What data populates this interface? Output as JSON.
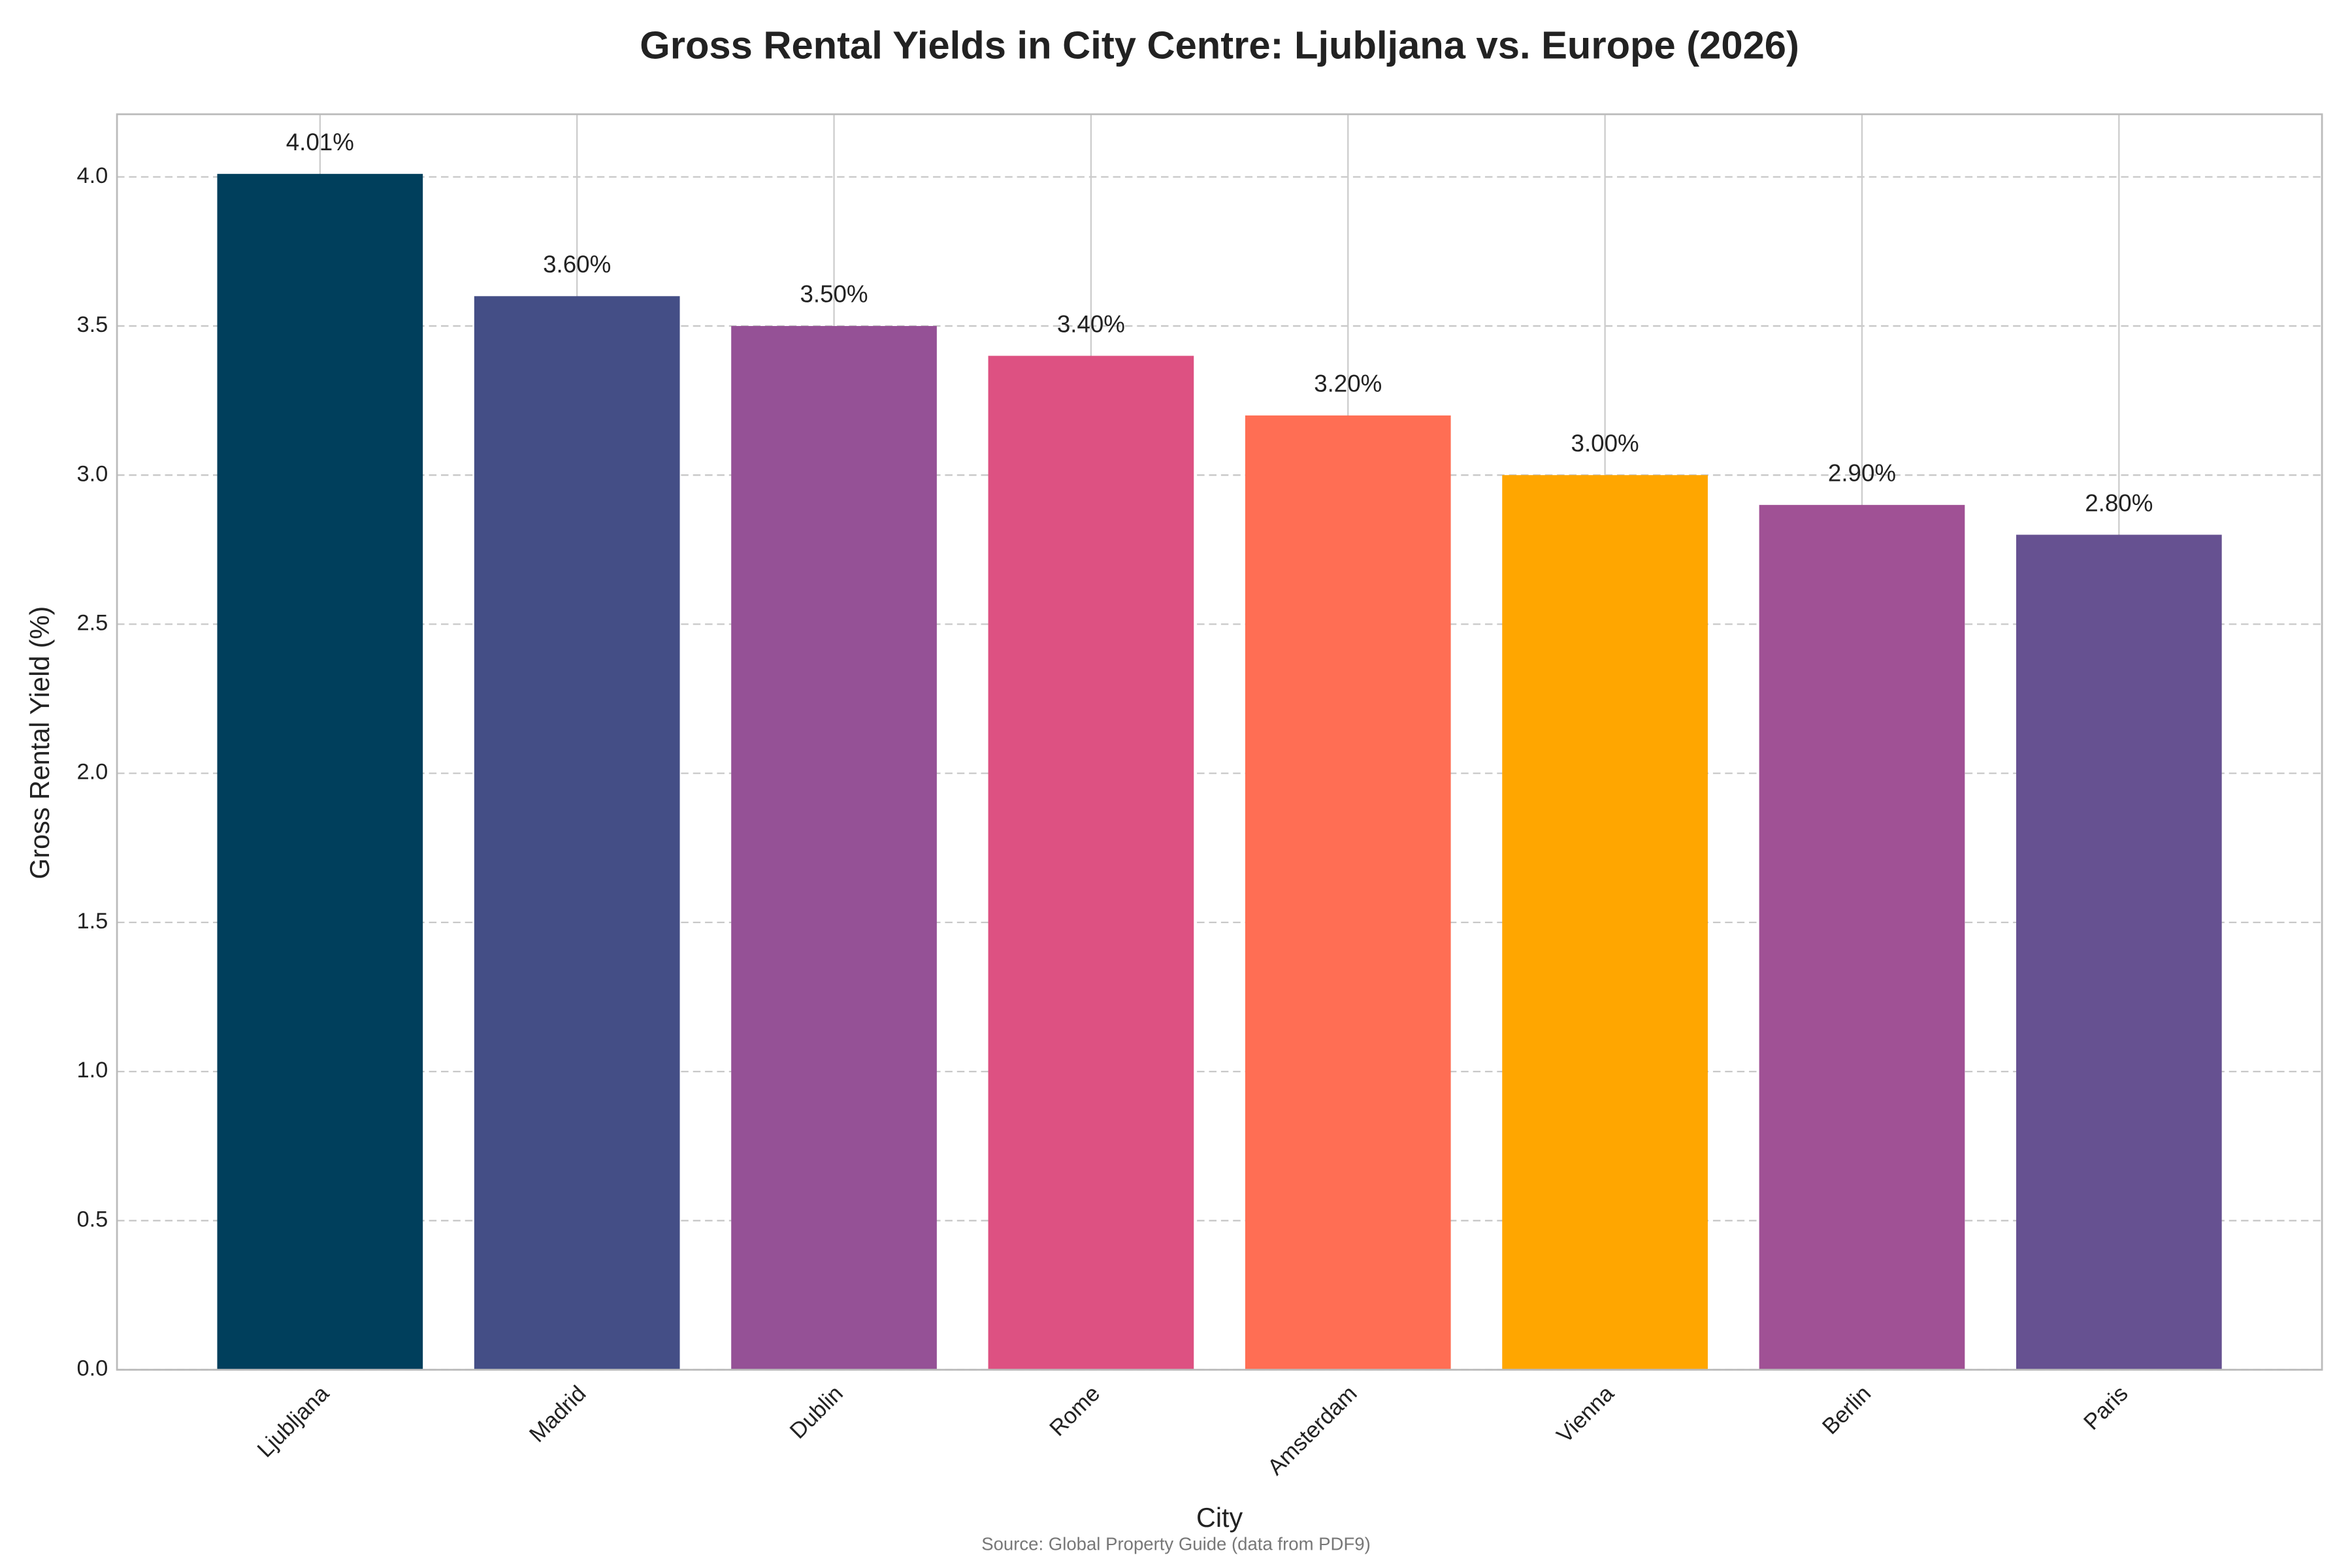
{
  "chart_data": {
    "type": "bar",
    "title": "Gross Rental Yields in City Centre: Ljubljana vs. Europe (2026)",
    "x_label": "City",
    "y_label": "Gross Rental Yield (%)",
    "source": "Source: Global Property Guide (data from PDF9)",
    "categories": [
      "Ljubljana",
      "Madrid",
      "Dublin",
      "Rome",
      "Amsterdam",
      "Vienna",
      "Berlin",
      "Paris"
    ],
    "values": [
      4.01,
      3.6,
      3.5,
      3.4,
      3.2,
      3.0,
      2.9,
      2.8
    ],
    "value_labels": [
      "4.01%",
      "3.60%",
      "3.50%",
      "3.40%",
      "3.20%",
      "3.00%",
      "2.90%",
      "2.80%"
    ],
    "colors": [
      "#003f5c",
      "#444e86",
      "#955196",
      "#dd5182",
      "#ff6e54",
      "#ffa600",
      "#a05195",
      "#665191"
    ],
    "ylim": [
      0,
      4.21
    ],
    "yticks": [
      {
        "value": 0,
        "label": "0.0"
      },
      {
        "value": 0.5,
        "label": "0.5"
      },
      {
        "value": 1,
        "label": "1.0"
      },
      {
        "value": 1.5,
        "label": "1.5"
      },
      {
        "value": 2,
        "label": "2.0"
      },
      {
        "value": 2.5,
        "label": "2.5"
      },
      {
        "value": 3,
        "label": "3.0"
      },
      {
        "value": 3.5,
        "label": "3.5"
      },
      {
        "value": 4,
        "label": "4.0"
      }
    ],
    "grid": true
  }
}
